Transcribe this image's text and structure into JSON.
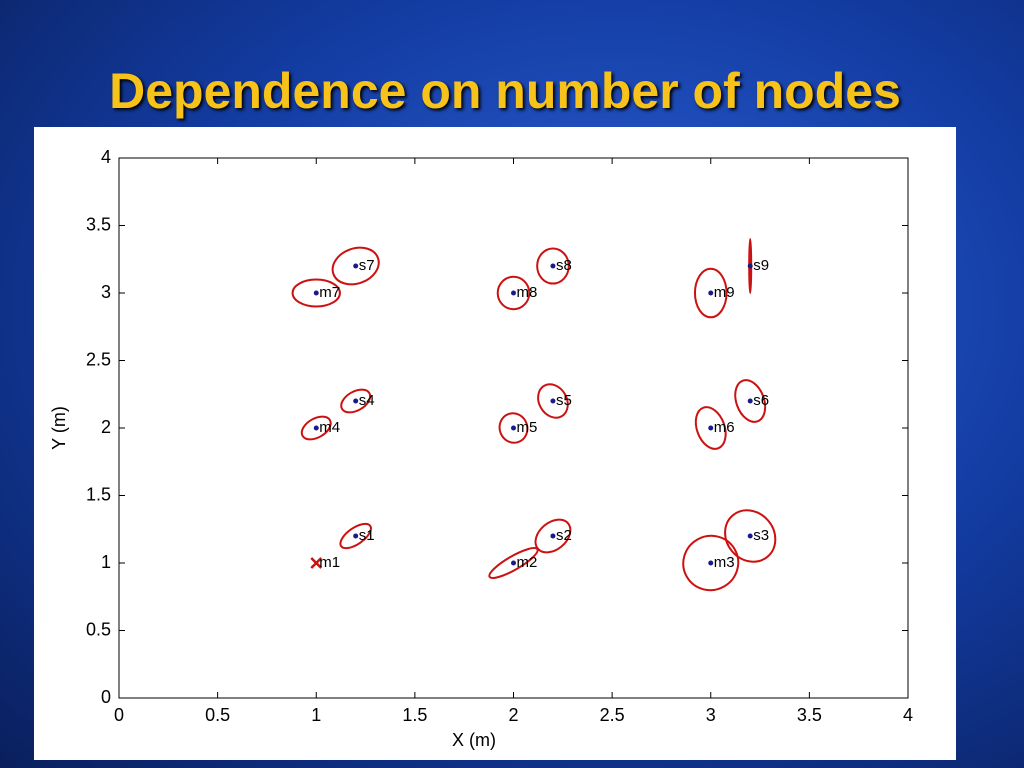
{
  "chart_data": {
    "type": "scatter",
    "title": "Dependence on number of nodes",
    "xlabel": "X (m)",
    "ylabel": "Y (m)",
    "xlim": [
      0,
      4
    ],
    "ylim": [
      0,
      4
    ],
    "xticks": [
      0,
      0.5,
      1,
      1.5,
      2,
      2.5,
      3,
      3.5,
      4
    ],
    "yticks": [
      0,
      0.5,
      1,
      1.5,
      2,
      2.5,
      3,
      3.5,
      4
    ],
    "point_color": "#1a1a8c",
    "ellipse_color": "#cc1111",
    "labels": [
      "m1",
      "m2",
      "m3",
      "m4",
      "m5",
      "m6",
      "m7",
      "m8",
      "m9",
      "s1",
      "s2",
      "s3",
      "s4",
      "s5",
      "s6",
      "s7",
      "s8",
      "s9"
    ],
    "x": [
      1,
      2,
      3,
      1,
      2,
      3,
      1,
      2,
      3,
      1.2,
      2.2,
      3.2,
      1.2,
      2.2,
      3.2,
      1.2,
      2.2,
      3.2
    ],
    "y": [
      1,
      1,
      1,
      2,
      2,
      2,
      3,
      3,
      3,
      1.2,
      1.2,
      1.2,
      2.2,
      2.2,
      2.2,
      3.2,
      3.2,
      3.2
    ],
    "ellipses": [
      null,
      [
        0.14,
        0.05,
        30
      ],
      [
        0.14,
        0.2,
        30
      ],
      [
        0.08,
        0.07,
        30
      ],
      [
        0.07,
        0.11,
        20
      ],
      [
        0.07,
        0.16,
        20
      ],
      [
        0.12,
        0.1,
        0
      ],
      [
        0.08,
        0.12,
        0
      ],
      [
        0.08,
        0.18,
        0
      ],
      [
        0.09,
        0.06,
        35
      ],
      [
        0.1,
        0.1,
        40
      ],
      [
        0.12,
        0.2,
        40
      ],
      [
        0.08,
        0.07,
        30
      ],
      [
        0.07,
        0.13,
        30
      ],
      [
        0.07,
        0.16,
        20
      ],
      [
        0.12,
        0.13,
        20
      ],
      [
        0.08,
        0.13,
        0
      ],
      [
        0,
        0.2,
        0
      ]
    ]
  }
}
